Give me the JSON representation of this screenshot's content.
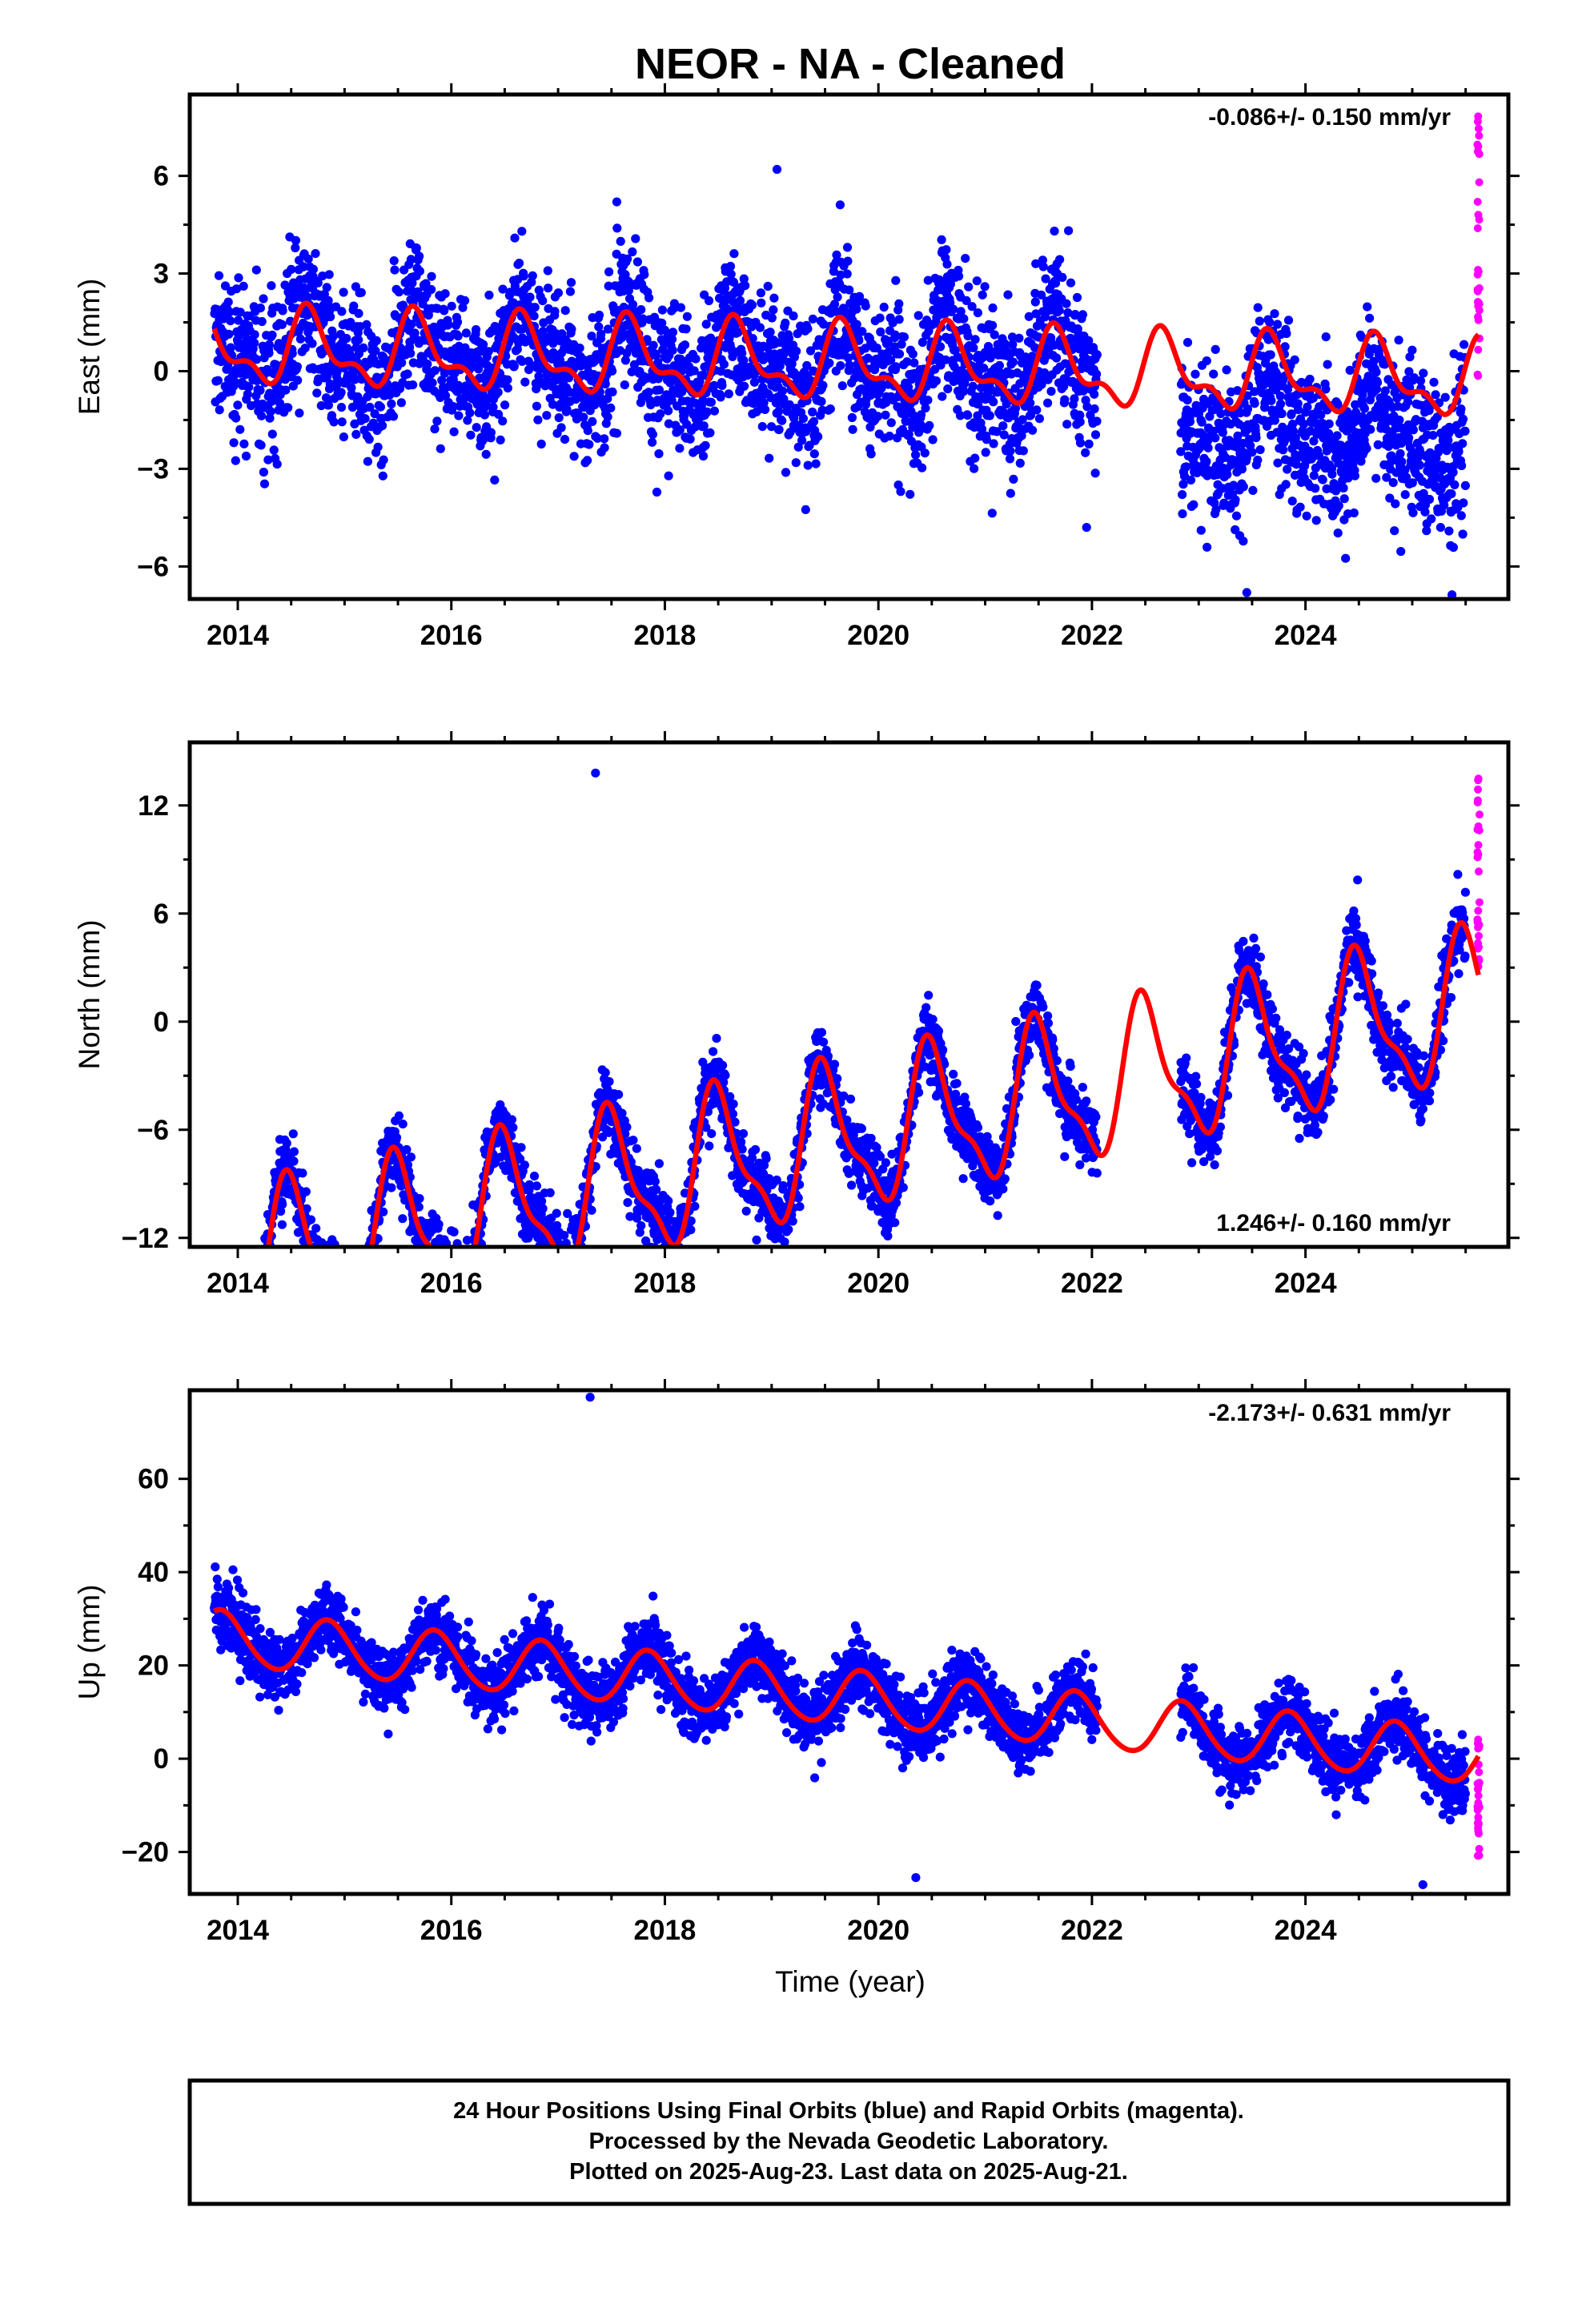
{
  "title": "NEOR  - NA - Cleaned",
  "xlabel": "Time (year)",
  "colors": {
    "final": "#0000ff",
    "rapid": "#ff00ff",
    "model": "#ff0000"
  },
  "footer": [
    "24 Hour Positions Using Final Orbits (blue) and Rapid Orbits (magenta).",
    "Processed by the Nevada Geodetic Laboratory.",
    "Plotted on 2025-Aug-23. Last data on 2025-Aug-21."
  ],
  "chart_data": [
    {
      "type": "scatter",
      "ylabel": "East (mm)",
      "rate_label": "-0.086+/- 0.150 mm/yr",
      "rate_position": "top-right",
      "xlim": [
        2013.55,
        2025.9
      ],
      "ylim": [
        -7,
        8.5
      ],
      "x_ticks": [
        2014,
        2016,
        2018,
        2020,
        2022,
        2024
      ],
      "x_tick_labels": [
        "2014",
        "2016",
        "2018",
        "2020",
        "2022",
        "2024"
      ],
      "y_ticks": [
        -6,
        -3,
        0,
        3,
        6
      ],
      "y_tick_labels": [
        "−6",
        "−3",
        "0",
        "3",
        "6"
      ],
      "data_span": [
        2013.78,
        2025.62
      ],
      "data_gap": [
        2022.05,
        2022.83
      ],
      "rapid_span": [
        2025.5,
        2025.63
      ],
      "rapid_range": [
        -0.8,
        8.3
      ],
      "series": [
        {
          "kind": "final",
          "model": {
            "offset": 0.2,
            "trend": -0.086,
            "annual_amp": 1.0,
            "annual_peak": 0.68,
            "semiannual_amp": 0.5,
            "semiannual_peak": 0.12,
            "noise": 1.1
          },
          "segments": [
            {
              "range": [
                2022.83,
                2025.5
              ],
              "offset": -1.6,
              "noise": 1.2
            }
          ],
          "outliers": [
            {
              "x": 2019.05,
              "y": 6.2
            },
            {
              "x": 2017.55,
              "y": 5.2
            },
            {
              "x": 2020.6,
              "y": 3.7
            },
            {
              "x": 2021.95,
              "y": -4.8
            },
            {
              "x": 2023.45,
              "y": -6.8
            }
          ]
        },
        {
          "kind": "rapid"
        },
        {
          "kind": "model_curve"
        }
      ]
    },
    {
      "type": "scatter",
      "ylabel": "North (mm)",
      "rate_label": "1.246+/- 0.160 mm/yr",
      "rate_position": "bottom-right",
      "xlim": [
        2013.55,
        2025.9
      ],
      "ylim": [
        -12.5,
        15.5
      ],
      "x_ticks": [
        2014,
        2016,
        2018,
        2020,
        2022,
        2024
      ],
      "x_tick_labels": [
        "2014",
        "2016",
        "2018",
        "2020",
        "2022",
        "2024"
      ],
      "y_ticks": [
        -12,
        -6,
        0,
        6,
        12
      ],
      "y_tick_labels": [
        "−12",
        "−6",
        "0",
        "6",
        "12"
      ],
      "data_span": [
        2013.78,
        2025.62
      ],
      "data_gap": [
        2022.05,
        2022.83
      ],
      "rapid_span": [
        2025.5,
        2025.63
      ],
      "rapid_range": [
        3.0,
        13.8
      ],
      "series": [
        {
          "kind": "final",
          "model": {
            "offset": -6.5,
            "trend": 1.246,
            "annual_amp": 3.8,
            "annual_peak": 0.5,
            "semiannual_amp": 1.3,
            "semiannual_peak": 0.42,
            "noise": 1.0
          },
          "segments": [],
          "outliers": [
            {
              "x": 2017.35,
              "y": 13.8
            },
            {
              "x": 2016.0,
              "y": -11.6
            },
            {
              "x": 2018.95,
              "y": -7.6
            }
          ]
        },
        {
          "kind": "rapid"
        },
        {
          "kind": "model_curve"
        }
      ]
    },
    {
      "type": "scatter",
      "ylabel": "Up (mm)",
      "rate_label": "-2.173+/- 0.631 mm/yr",
      "rate_position": "top-right",
      "xlim": [
        2013.55,
        2025.9
      ],
      "ylim": [
        -29,
        79
      ],
      "x_ticks": [
        2014,
        2016,
        2018,
        2020,
        2022,
        2024
      ],
      "x_tick_labels": [
        "2014",
        "2016",
        "2018",
        "2020",
        "2022",
        "2024"
      ],
      "y_ticks": [
        -20,
        0,
        20,
        40,
        60
      ],
      "y_tick_labels": [
        "−20",
        "0",
        "20",
        "40",
        "60"
      ],
      "data_span": [
        2013.78,
        2025.62
      ],
      "data_gap": [
        2022.05,
        2022.83
      ],
      "rapid_span": [
        2025.5,
        2025.63
      ],
      "rapid_range": [
        -21,
        6
      ],
      "series": [
        {
          "kind": "final",
          "model": {
            "offset": 13.0,
            "trend": -2.173,
            "annual_amp": 5.8,
            "annual_peak": 0.85,
            "semiannual_amp": 0.5,
            "semiannual_peak": 0.3,
            "noise": 3.6
          },
          "segments": [],
          "outliers": [
            {
              "x": 2017.3,
              "y": 77.5
            },
            {
              "x": 2020.05,
              "y": 20.5
            },
            {
              "x": 2022.95,
              "y": 19.5
            },
            {
              "x": 2019.1,
              "y": 22.5
            },
            {
              "x": 2025.1,
              "y": -27.0
            },
            {
              "x": 2020.35,
              "y": -25.5
            }
          ]
        },
        {
          "kind": "rapid"
        },
        {
          "kind": "model_curve"
        }
      ]
    }
  ]
}
